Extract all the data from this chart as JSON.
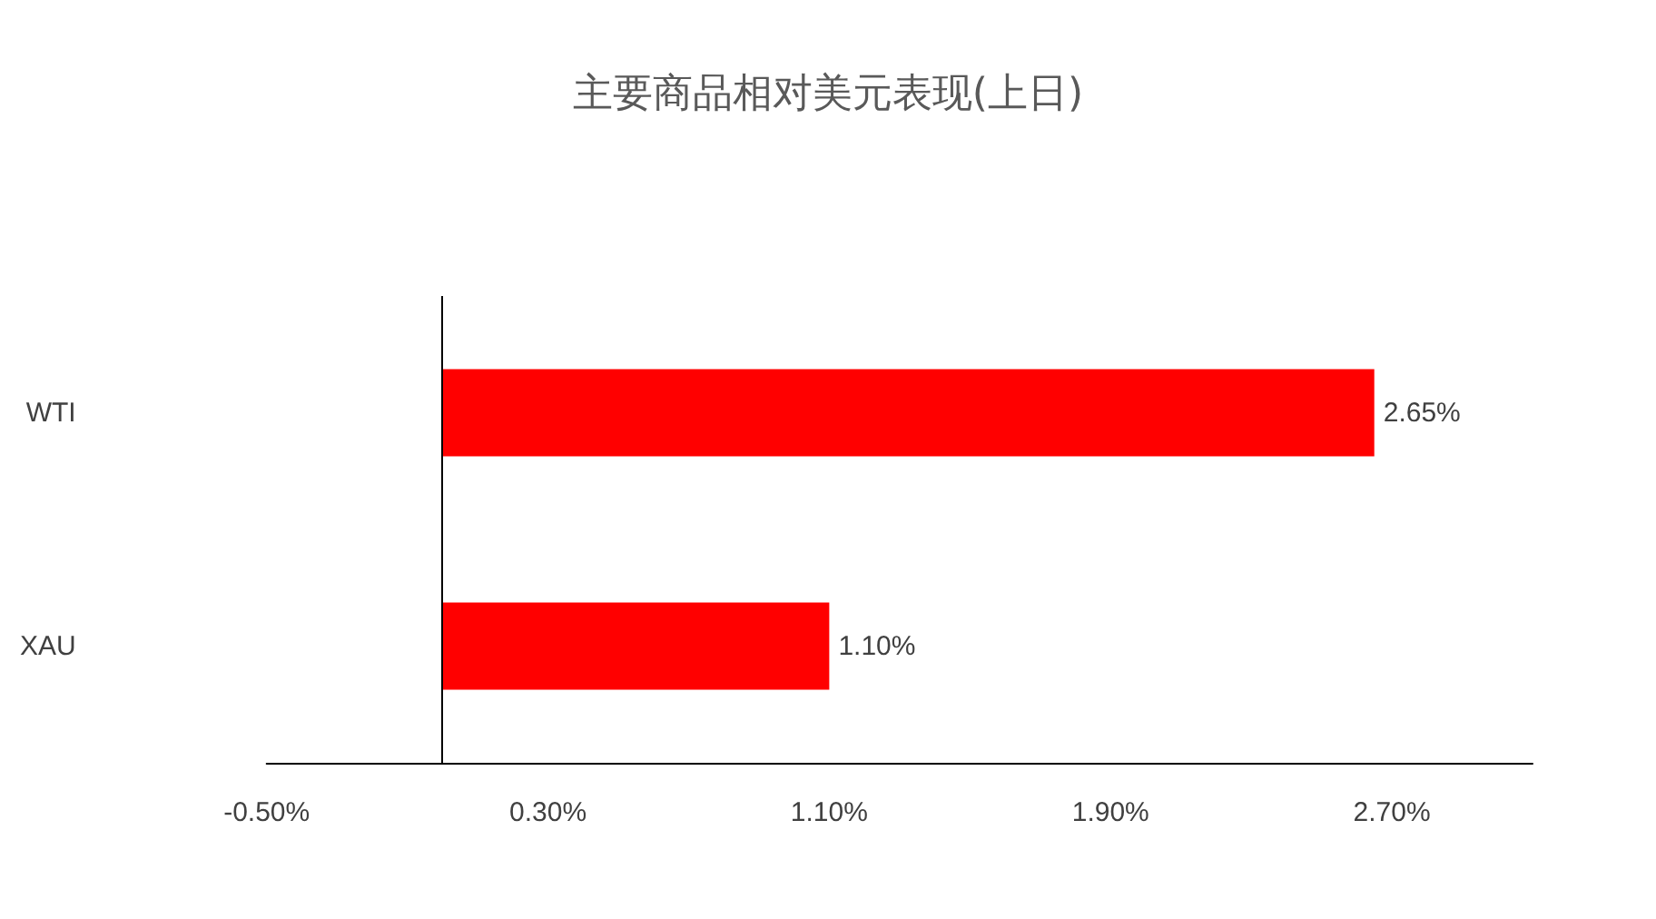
{
  "chart_data": {
    "type": "bar",
    "title": "主要商品相对美元表现(上日)",
    "orientation": "horizontal",
    "categories": [
      "WTI",
      "XAU"
    ],
    "values": [
      2.65,
      1.1
    ],
    "color": "#ff0000",
    "value_labels": [
      "2.65%",
      "1.10%"
    ],
    "xlim": [
      -0.5,
      3.1
    ],
    "xticks": [
      {
        "value": -0.5,
        "label": "-0.50%"
      },
      {
        "value": 0.3,
        "label": "0.30%"
      },
      {
        "value": 1.1,
        "label": "1.10%"
      },
      {
        "value": 1.9,
        "label": "1.90%"
      },
      {
        "value": 2.7,
        "label": "2.70%"
      }
    ],
    "ref_lines": [
      {
        "axis": "x",
        "value": 0,
        "color": "#000000"
      }
    ],
    "grid": false
  }
}
